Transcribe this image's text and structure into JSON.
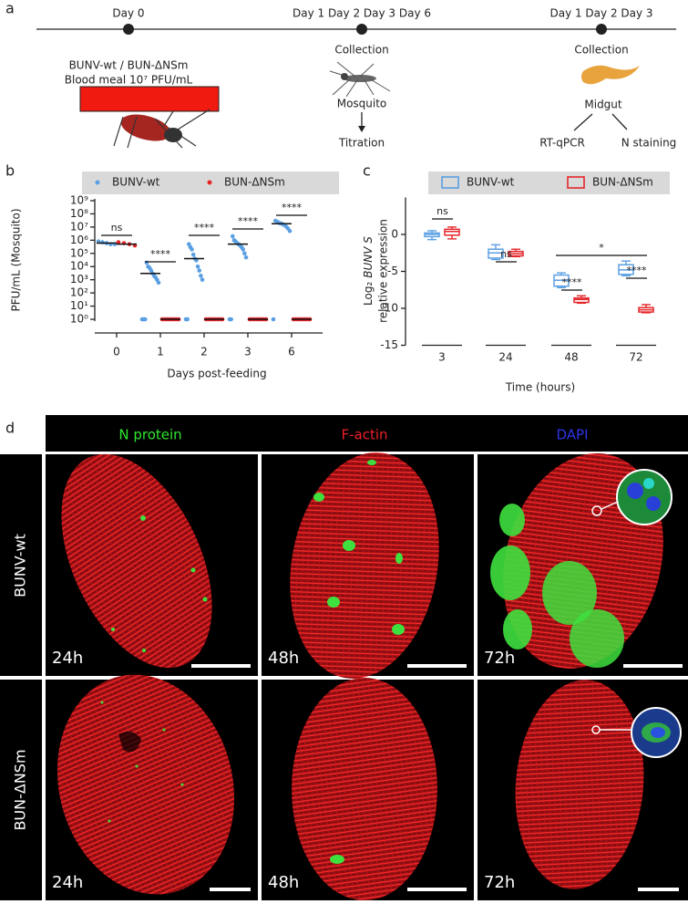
{
  "panel_labels": [
    "a",
    "b",
    "c",
    "d"
  ],
  "timeline": {
    "day0": "Day 0",
    "mid_days": "Day 1 Day 2 Day 3 Day 6",
    "right_days": "Day 1 Day 2 Day 3",
    "left_line1": "BUNV-wt / BUN-ΔNSm",
    "left_line2": "Blood meal 10⁷ PFU/mL",
    "mid_collection": "Collection",
    "mid_subject": "Mosquito",
    "mid_assay": "Titration",
    "right_collection": "Collection",
    "right_subject": "Midgut",
    "right_assay1": "RT-qPCR",
    "right_assay2": "N staining"
  },
  "chart_data": [
    {
      "type": "dot",
      "xlabel": "Days post-feeding",
      "ylabel": "PFU/mL (Mosquito)",
      "categories": [
        "0",
        "1",
        "2",
        "3",
        "6"
      ],
      "log_scale": true,
      "ylim": [
        1,
        1000000000
      ],
      "yticks": [
        {
          "value": 1,
          "label": "10⁰"
        },
        {
          "value": 10,
          "label": "10¹"
        },
        {
          "value": 100,
          "label": "10²"
        },
        {
          "value": 1000,
          "label": "10³"
        },
        {
          "value": 10000,
          "label": "10⁴"
        },
        {
          "value": 100000,
          "label": "10⁵"
        },
        {
          "value": 1000000,
          "label": "10⁶"
        },
        {
          "value": 10000000,
          "label": "10⁷"
        },
        {
          "value": 100000000,
          "label": "10⁸"
        },
        {
          "value": 1000000000,
          "label": "10⁹"
        }
      ],
      "series": [
        {
          "name": "BUNV-wt",
          "color": "#5b9fe3",
          "values": [
            [
              800000,
              700000,
              600000,
              500000,
              500000
            ],
            [
              1,
              1,
              1,
              20000,
              10000,
              8000,
              5000,
              3000,
              2000,
              1500,
              1000,
              600
            ],
            [
              1,
              1,
              500000,
              300000,
              200000,
              80000,
              40000,
              30000,
              10000,
              5000,
              2000,
              1000
            ],
            [
              1,
              1,
              2000000,
              1000000,
              800000,
              600000,
              500000,
              400000,
              300000,
              200000,
              100000,
              50000
            ],
            [
              1,
              30000000,
              25000000,
              20000000,
              18000000,
              15000000,
              12000000,
              8000000,
              5000000
            ]
          ],
          "medians": [
            600000,
            3000,
            40000,
            500000,
            18000000
          ]
        },
        {
          "name": "BUN-ΔNSm",
          "color": "#e5262b",
          "values": [
            [
              700000,
              600000,
              500000,
              400000
            ],
            [
              1,
              1,
              1,
              1,
              1,
              1,
              1,
              1
            ],
            [
              1,
              1,
              1,
              1,
              1,
              1,
              1,
              1
            ],
            [
              1,
              1,
              1,
              1,
              1,
              1,
              1,
              1
            ],
            [
              1,
              1,
              1,
              1,
              1,
              1,
              1,
              1
            ]
          ],
          "medians": [
            500000,
            1,
            1,
            1,
            1
          ]
        }
      ],
      "annotations": [
        "ns",
        "****",
        "****",
        "****",
        "****"
      ]
    },
    {
      "type": "box",
      "xlabel": "Time (hours)",
      "ylabel": {
        "prefix": "Log₂",
        "italic": "BUNV S",
        "line2": "relative expression"
      },
      "categories": [
        "3",
        "24",
        "48",
        "72"
      ],
      "ylim": [
        -15,
        5
      ],
      "yticks": [
        0,
        -5,
        -10,
        -15
      ],
      "series": [
        {
          "name": "BUNV-wt",
          "color": "#5b9fe3",
          "min": [
            -0.7,
            -3.4,
            -7.2,
            -5.6
          ],
          "q1": [
            -0.3,
            -3.2,
            -7,
            -5.4
          ],
          "median": [
            0,
            -2.5,
            -6.2,
            -4.8
          ],
          "q3": [
            0.2,
            -2,
            -5.5,
            -4.1
          ],
          "max": [
            0.5,
            -1.4,
            -5.2,
            -3.6
          ]
        },
        {
          "name": "BUN-ΔNSm",
          "color": "#e5262b",
          "min": [
            -0.6,
            -3,
            -9.3,
            -10.6
          ],
          "q1": [
            -0.1,
            -2.9,
            -9.2,
            -10.5
          ],
          "median": [
            0.4,
            -2.6,
            -8.8,
            -10.2
          ],
          "q3": [
            0.7,
            -2.3,
            -8.6,
            -9.9
          ],
          "max": [
            1,
            -2,
            -8.3,
            -9.5
          ]
        }
      ],
      "annotations": [
        "ns",
        "ns",
        "****",
        "****",
        "*"
      ]
    }
  ],
  "images": {
    "channels": [
      "N protein",
      "F-actin",
      "DAPI"
    ],
    "rows": [
      "BUNV-wt",
      "BUN-ΔNSm"
    ],
    "times": [
      [
        "24h",
        "48h",
        "72h"
      ],
      [
        "24h",
        "48h",
        "72h"
      ]
    ]
  }
}
